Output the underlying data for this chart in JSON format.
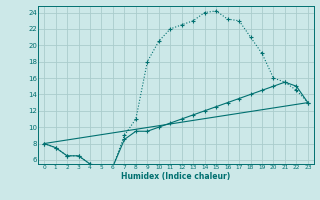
{
  "xlabel": "Humidex (Indice chaleur)",
  "bg_color": "#cce8e8",
  "grid_color": "#aacccc",
  "line_color": "#007070",
  "xlim_min": -0.5,
  "xlim_max": 23.5,
  "ylim_min": 5.5,
  "ylim_max": 24.8,
  "yticks": [
    6,
    8,
    10,
    12,
    14,
    16,
    18,
    20,
    22,
    24
  ],
  "xticks": [
    0,
    1,
    2,
    3,
    4,
    5,
    6,
    7,
    8,
    9,
    10,
    11,
    12,
    13,
    14,
    15,
    16,
    17,
    18,
    19,
    20,
    21,
    22,
    23
  ],
  "curve1_x": [
    0,
    1,
    2,
    3,
    4,
    5,
    6,
    7,
    8,
    9,
    10,
    11,
    12,
    13,
    14,
    15,
    16,
    17,
    18,
    19,
    20,
    21,
    22,
    23
  ],
  "curve1_y": [
    8.0,
    7.5,
    6.5,
    6.5,
    5.5,
    5.0,
    5.2,
    9.0,
    11.0,
    18.0,
    20.5,
    22.0,
    22.5,
    23.0,
    24.0,
    24.2,
    23.2,
    23.0,
    21.0,
    19.0,
    16.0,
    15.5,
    14.5,
    13.0
  ],
  "curve2_x": [
    0,
    1,
    2,
    3,
    4,
    5,
    6,
    7,
    8,
    9,
    10,
    11,
    12,
    13,
    14,
    15,
    16,
    17,
    18,
    19,
    20,
    21,
    22,
    23
  ],
  "curve2_y": [
    8.0,
    7.5,
    6.5,
    6.5,
    5.5,
    5.0,
    5.2,
    8.5,
    9.5,
    9.5,
    10.0,
    10.5,
    11.0,
    11.5,
    12.0,
    12.5,
    13.0,
    13.5,
    14.0,
    14.5,
    15.0,
    15.5,
    15.0,
    13.0
  ],
  "curve3_x": [
    0,
    23
  ],
  "curve3_y": [
    8.0,
    13.0
  ]
}
